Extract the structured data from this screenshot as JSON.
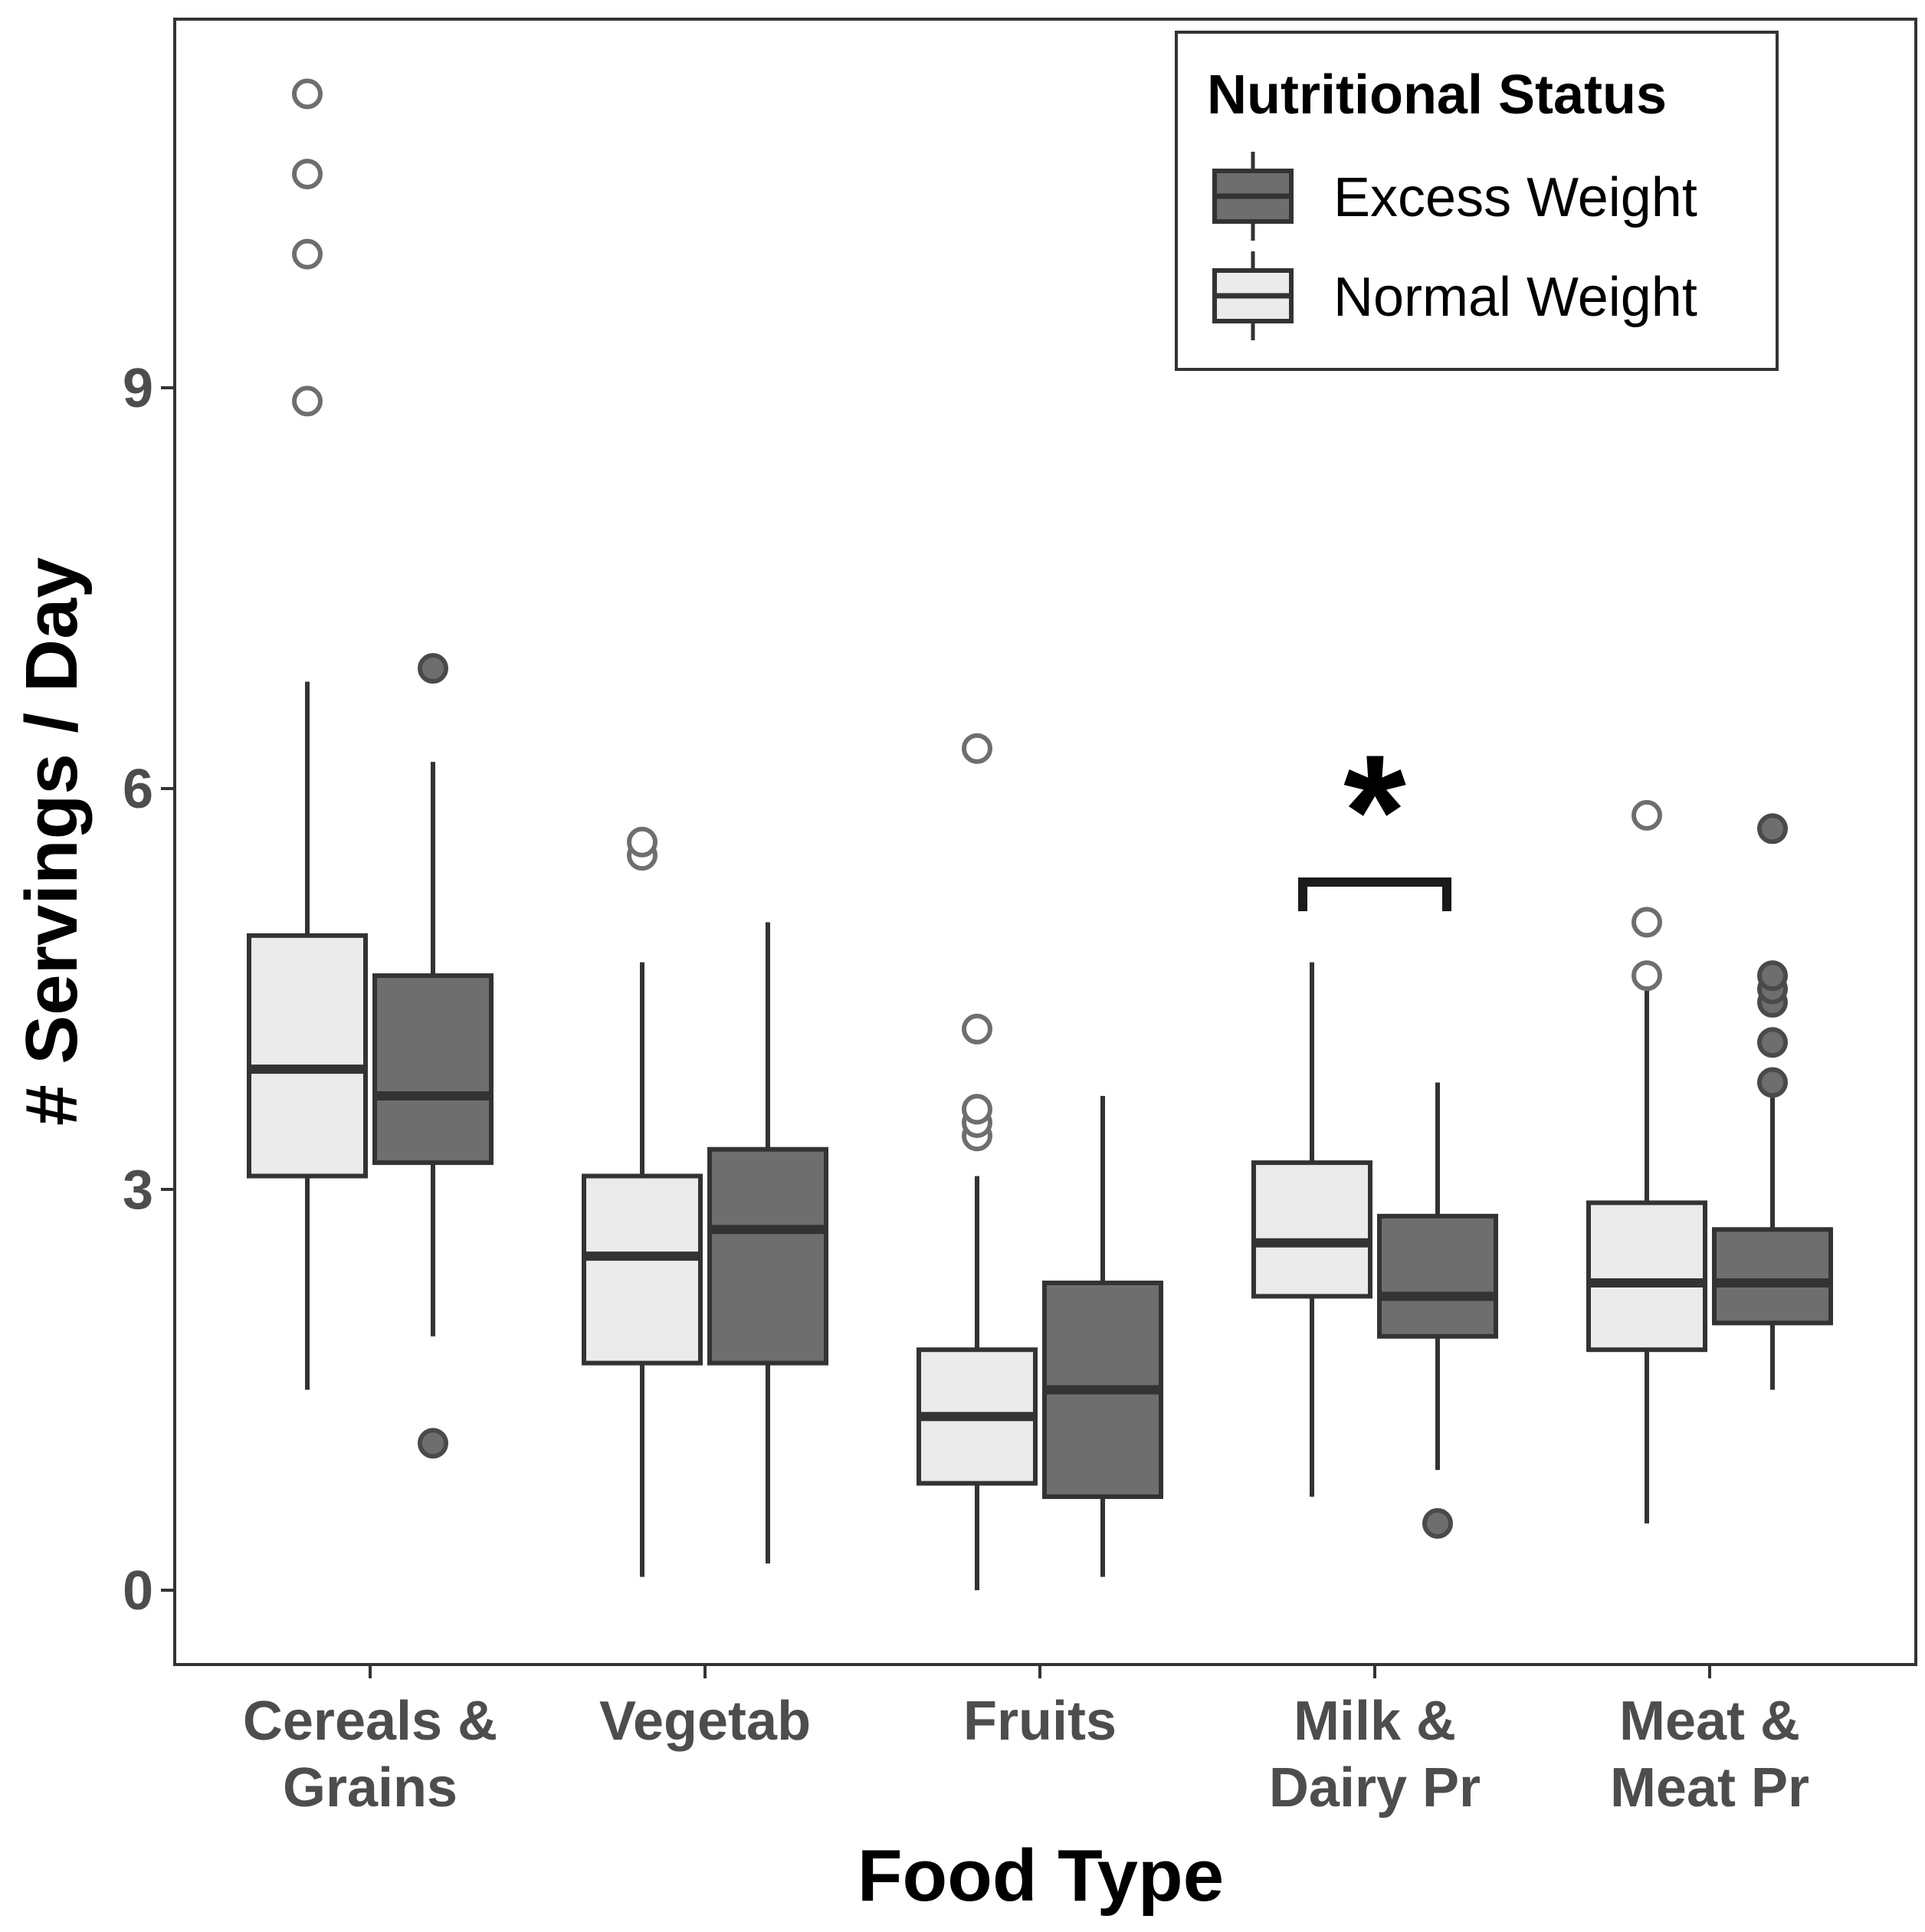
{
  "chart_data": {
    "type": "boxplot",
    "xlabel": "Food Type",
    "ylabel": "# Servings / Day",
    "ylim": [
      -0.5,
      11.8
    ],
    "yticks": [
      "0",
      "3",
      "6",
      "9"
    ],
    "categories": [
      [
        "Cereals &",
        "Grains"
      ],
      [
        "Vegetab"
      ],
      [
        "Fruits"
      ],
      [
        "Milk &",
        "Dairy Pr"
      ],
      [
        "Meat &",
        "Meat Pr"
      ]
    ],
    "legend": {
      "title": "Nutritional Status",
      "position": "top-right",
      "entries": [
        "Excess Weight",
        "Normal Weight"
      ]
    },
    "series": [
      {
        "name": "Normal Weight",
        "fill": "#ebebeb",
        "boxes": [
          {
            "q1": 3.1,
            "median": 3.9,
            "q3": 4.9,
            "whisker_low": 1.5,
            "whisker_high": 6.8,
            "outliers": [
              8.9,
              10.0,
              10.6,
              11.2
            ]
          },
          {
            "q1": 1.7,
            "median": 2.5,
            "q3": 3.1,
            "whisker_low": 0.1,
            "whisker_high": 4.7,
            "outliers": [
              5.5,
              5.6
            ]
          },
          {
            "q1": 0.8,
            "median": 1.3,
            "q3": 1.8,
            "whisker_low": 0.0,
            "whisker_high": 3.1,
            "outliers": [
              3.4,
              3.5,
              3.6,
              4.2,
              6.3
            ]
          },
          {
            "q1": 2.2,
            "median": 2.6,
            "q3": 3.2,
            "whisker_low": 0.7,
            "whisker_high": 4.7,
            "outliers": []
          },
          {
            "q1": 1.8,
            "median": 2.3,
            "q3": 2.9,
            "whisker_low": 0.5,
            "whisker_high": 4.6,
            "outliers": [
              4.6,
              5.0,
              5.8
            ]
          }
        ]
      },
      {
        "name": "Excess Weight",
        "fill": "#6e6e6e",
        "boxes": [
          {
            "q1": 3.2,
            "median": 3.7,
            "q3": 4.6,
            "whisker_low": 1.9,
            "whisker_high": 6.2,
            "outliers": [
              1.1,
              6.9
            ]
          },
          {
            "q1": 1.7,
            "median": 2.7,
            "q3": 3.3,
            "whisker_low": 0.2,
            "whisker_high": 5.0,
            "outliers": []
          },
          {
            "q1": 0.7,
            "median": 1.5,
            "q3": 2.3,
            "whisker_low": 0.1,
            "whisker_high": 3.7,
            "outliers": []
          },
          {
            "q1": 1.9,
            "median": 2.2,
            "q3": 2.8,
            "whisker_low": 0.9,
            "whisker_high": 3.8,
            "outliers": [
              0.5
            ]
          },
          {
            "q1": 2.0,
            "median": 2.3,
            "q3": 2.7,
            "whisker_low": 1.5,
            "whisker_high": 3.7,
            "outliers": [
              3.8,
              4.1,
              4.4,
              4.5,
              4.6,
              5.7
            ]
          }
        ]
      }
    ],
    "annotations": [
      {
        "text": "*",
        "category_index": 3,
        "bracket_y": 5.3
      }
    ]
  }
}
